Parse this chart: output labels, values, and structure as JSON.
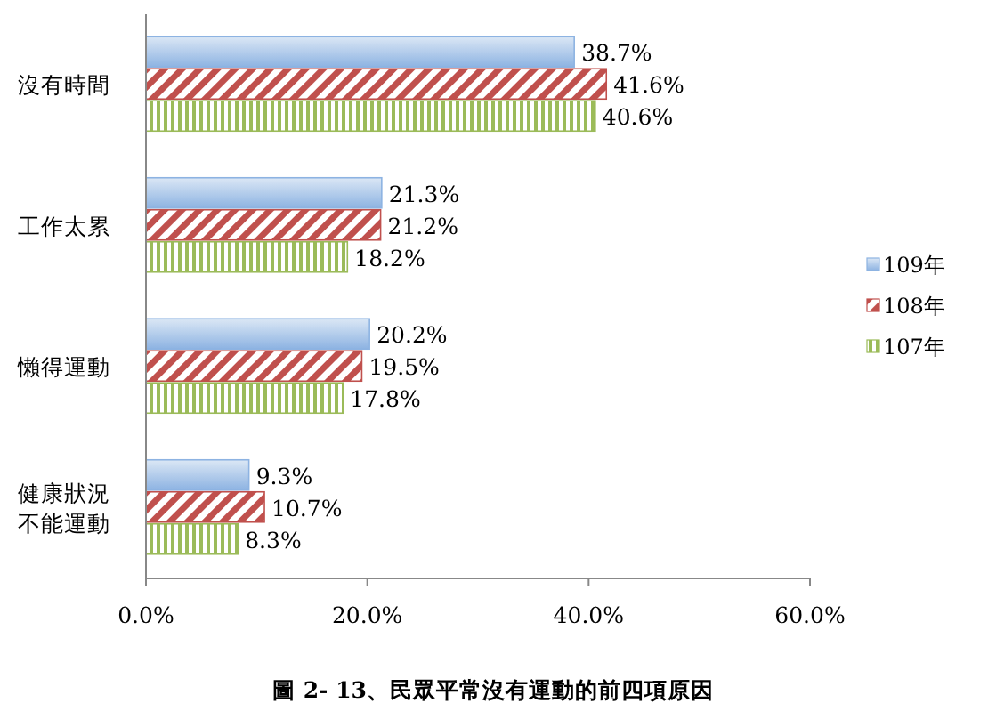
{
  "chart_data": {
    "type": "bar",
    "orientation": "horizontal",
    "title": "圖 2- 13、民眾平常沒有運動的前四項原因",
    "categories": [
      "沒有時間",
      "工作太累",
      "懶得運動",
      "健康狀況不能運動"
    ],
    "series": [
      {
        "name": "109年",
        "color": "#8db3e2",
        "values": [
          38.7,
          21.3,
          20.2,
          9.3
        ],
        "value_labels": [
          "38.7%",
          "21.3%",
          "20.2%",
          "9.3%"
        ]
      },
      {
        "name": "108年",
        "color": "#c0504d",
        "values": [
          41.6,
          21.2,
          19.5,
          10.7
        ],
        "value_labels": [
          "41.6%",
          "21.2%",
          "19.5%",
          "10.7%"
        ]
      },
      {
        "name": "107年",
        "color": "#9bbb59",
        "values": [
          40.6,
          18.2,
          17.8,
          8.3
        ],
        "value_labels": [
          "40.6%",
          "18.2%",
          "17.8%",
          "8.3%"
        ]
      }
    ],
    "xlim": [
      0,
      60
    ],
    "xticks": [
      {
        "value": 0,
        "label": "0.0%"
      },
      {
        "value": 20,
        "label": "20.0%"
      },
      {
        "value": 40,
        "label": "40.0%"
      },
      {
        "value": 60,
        "label": "60.0%"
      }
    ],
    "legend": "right",
    "grid": false
  }
}
